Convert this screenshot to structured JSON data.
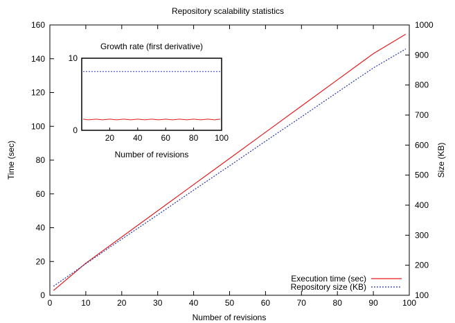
{
  "chart_data": [
    {
      "type": "line",
      "title": "Repository scalability statistics",
      "xlabel": "Number of revisions",
      "ylabel": "Time (sec)",
      "y2label": "Size (KB)",
      "xlim": [
        0,
        100
      ],
      "ylim": [
        0,
        160
      ],
      "y2lim": [
        100,
        1000
      ],
      "x_ticks": [
        0,
        10,
        20,
        30,
        40,
        50,
        60,
        70,
        80,
        90,
        100
      ],
      "y_ticks": [
        0,
        20,
        40,
        60,
        80,
        100,
        120,
        140,
        160
      ],
      "y2_ticks": [
        100,
        200,
        300,
        400,
        500,
        600,
        700,
        800,
        900,
        1000
      ],
      "grid": false,
      "legend_position": "bottom-right",
      "series": [
        {
          "name": "Execution time (sec)",
          "axis": "left",
          "color": "#e41a1c",
          "style": "solid",
          "x": [
            1,
            10,
            20,
            30,
            40,
            50,
            60,
            70,
            80,
            90,
            99
          ],
          "y": [
            2.8,
            19,
            34.5,
            50,
            65.5,
            81,
            96.5,
            112,
            127.5,
            143,
            154.5
          ]
        },
        {
          "name": "Repository size (KB)",
          "axis": "right",
          "color": "#2233aa",
          "style": "dotted",
          "x": [
            1,
            10,
            20,
            30,
            40,
            50,
            60,
            70,
            80,
            90,
            99
          ],
          "y": [
            130,
            205,
            287,
            368,
            450,
            531,
            613,
            694,
            776,
            857,
            920
          ]
        }
      ]
    },
    {
      "type": "line",
      "title": "Growth rate (first derivative)",
      "xlabel": "Number of revisions",
      "ylabel": "",
      "xlim": [
        0,
        100
      ],
      "ylim": [
        0,
        10
      ],
      "x_ticks": [
        20,
        40,
        60,
        80,
        100
      ],
      "y_ticks": [
        0,
        10
      ],
      "grid": false,
      "series": [
        {
          "color": "#e41a1c",
          "style": "solid",
          "x": [
            1,
            5,
            10,
            15,
            20,
            25,
            30,
            35,
            40,
            45,
            50,
            55,
            60,
            65,
            70,
            75,
            80,
            85,
            90,
            95,
            99
          ],
          "y": [
            1.55,
            1.45,
            1.55,
            1.45,
            1.55,
            1.45,
            1.55,
            1.45,
            1.55,
            1.45,
            1.55,
            1.45,
            1.55,
            1.45,
            1.55,
            1.45,
            1.55,
            1.45,
            1.55,
            1.45,
            1.55
          ]
        },
        {
          "color": "#2233aa",
          "style": "dotted",
          "x": [
            1,
            10,
            20,
            30,
            40,
            50,
            60,
            70,
            80,
            90,
            99
          ],
          "y": [
            8.15,
            8.15,
            8.15,
            8.15,
            8.15,
            8.15,
            8.15,
            8.15,
            8.15,
            8.15,
            8.15
          ]
        }
      ]
    }
  ]
}
